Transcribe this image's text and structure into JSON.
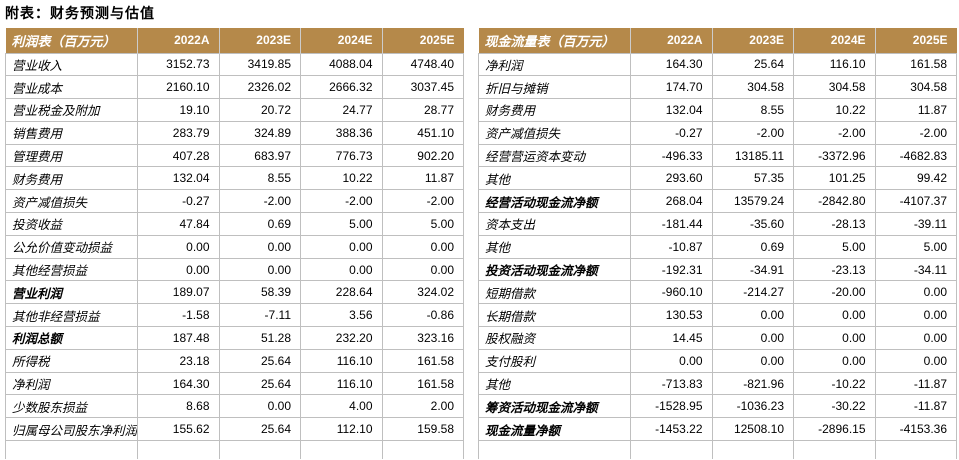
{
  "page_title": "附表：财务预测与估值",
  "colors": {
    "header_bg": "#B5894A",
    "header_text": "#FFFFFF",
    "grid_line": "#BFBFBF",
    "header_separator": "#CCCCCC",
    "text": "#000000",
    "background": "#FFFFFF"
  },
  "income_table": {
    "title": "利润表（百万元）",
    "columns": [
      "2022A",
      "2023E",
      "2024E",
      "2025E"
    ],
    "rows": [
      {
        "label": "营业收入",
        "bold": false,
        "values": [
          "3152.73",
          "3419.85",
          "4088.04",
          "4748.40"
        ]
      },
      {
        "label": "营业成本",
        "bold": false,
        "values": [
          "2160.10",
          "2326.02",
          "2666.32",
          "3037.45"
        ]
      },
      {
        "label": "营业税金及附加",
        "bold": false,
        "values": [
          "19.10",
          "20.72",
          "24.77",
          "28.77"
        ]
      },
      {
        "label": "销售费用",
        "bold": false,
        "values": [
          "283.79",
          "324.89",
          "388.36",
          "451.10"
        ]
      },
      {
        "label": "管理费用",
        "bold": false,
        "values": [
          "407.28",
          "683.97",
          "776.73",
          "902.20"
        ]
      },
      {
        "label": "财务费用",
        "bold": false,
        "values": [
          "132.04",
          "8.55",
          "10.22",
          "11.87"
        ]
      },
      {
        "label": "资产减值损失",
        "bold": false,
        "values": [
          "-0.27",
          "-2.00",
          "-2.00",
          "-2.00"
        ]
      },
      {
        "label": "投资收益",
        "bold": false,
        "values": [
          "47.84",
          "0.69",
          "5.00",
          "5.00"
        ]
      },
      {
        "label": "公允价值变动损益",
        "bold": false,
        "values": [
          "0.00",
          "0.00",
          "0.00",
          "0.00"
        ]
      },
      {
        "label": "其他经营损益",
        "bold": false,
        "values": [
          "0.00",
          "0.00",
          "0.00",
          "0.00"
        ]
      },
      {
        "label": "营业利润",
        "bold": true,
        "values": [
          "189.07",
          "58.39",
          "228.64",
          "324.02"
        ]
      },
      {
        "label": "其他非经营损益",
        "bold": false,
        "values": [
          "-1.58",
          "-7.11",
          "3.56",
          "-0.86"
        ]
      },
      {
        "label": "利润总额",
        "bold": true,
        "values": [
          "187.48",
          "51.28",
          "232.20",
          "323.16"
        ]
      },
      {
        "label": "所得税",
        "bold": false,
        "values": [
          "23.18",
          "25.64",
          "116.10",
          "161.58"
        ]
      },
      {
        "label": "净利润",
        "bold": false,
        "values": [
          "164.30",
          "25.64",
          "116.10",
          "161.58"
        ]
      },
      {
        "label": "少数股东损益",
        "bold": false,
        "values": [
          "8.68",
          "0.00",
          "4.00",
          "2.00"
        ]
      },
      {
        "label": "归属母公司股东净利润",
        "bold": false,
        "values": [
          "155.62",
          "25.64",
          "112.10",
          "159.58"
        ]
      }
    ]
  },
  "cashflow_table": {
    "title": "现金流量表（百万元）",
    "columns": [
      "2022A",
      "2023E",
      "2024E",
      "2025E"
    ],
    "rows": [
      {
        "label": "净利润",
        "bold": false,
        "values": [
          "164.30",
          "25.64",
          "116.10",
          "161.58"
        ]
      },
      {
        "label": "折旧与摊销",
        "bold": false,
        "values": [
          "174.70",
          "304.58",
          "304.58",
          "304.58"
        ]
      },
      {
        "label": "财务费用",
        "bold": false,
        "values": [
          "132.04",
          "8.55",
          "10.22",
          "11.87"
        ]
      },
      {
        "label": "资产减值损失",
        "bold": false,
        "values": [
          "-0.27",
          "-2.00",
          "-2.00",
          "-2.00"
        ]
      },
      {
        "label": "经营营运资本变动",
        "bold": false,
        "values": [
          "-496.33",
          "13185.11",
          "-3372.96",
          "-4682.83"
        ]
      },
      {
        "label": "其他",
        "bold": false,
        "values": [
          "293.60",
          "57.35",
          "101.25",
          "99.42"
        ]
      },
      {
        "label": "经营活动现金流净额",
        "bold": true,
        "values": [
          "268.04",
          "13579.24",
          "-2842.80",
          "-4107.37"
        ]
      },
      {
        "label": "资本支出",
        "bold": false,
        "values": [
          "-181.44",
          "-35.60",
          "-28.13",
          "-39.11"
        ]
      },
      {
        "label": "其他",
        "bold": false,
        "values": [
          "-10.87",
          "0.69",
          "5.00",
          "5.00"
        ]
      },
      {
        "label": "投资活动现金流净额",
        "bold": true,
        "values": [
          "-192.31",
          "-34.91",
          "-23.13",
          "-34.11"
        ]
      },
      {
        "label": "短期借款",
        "bold": false,
        "values": [
          "-960.10",
          "-214.27",
          "-20.00",
          "0.00"
        ]
      },
      {
        "label": "长期借款",
        "bold": false,
        "values": [
          "130.53",
          "0.00",
          "0.00",
          "0.00"
        ]
      },
      {
        "label": "股权融资",
        "bold": false,
        "values": [
          "14.45",
          "0.00",
          "0.00",
          "0.00"
        ]
      },
      {
        "label": "支付股利",
        "bold": false,
        "values": [
          "0.00",
          "0.00",
          "0.00",
          "0.00"
        ]
      },
      {
        "label": "其他",
        "bold": false,
        "values": [
          "-713.83",
          "-821.96",
          "-10.22",
          "-11.87"
        ]
      },
      {
        "label": "筹资活动现金流净额",
        "bold": true,
        "values": [
          "-1528.95",
          "-1036.23",
          "-30.22",
          "-11.87"
        ]
      },
      {
        "label": "现金流量净额",
        "bold": true,
        "values": [
          "-1453.22",
          "12508.10",
          "-2896.15",
          "-4153.36"
        ]
      }
    ]
  }
}
